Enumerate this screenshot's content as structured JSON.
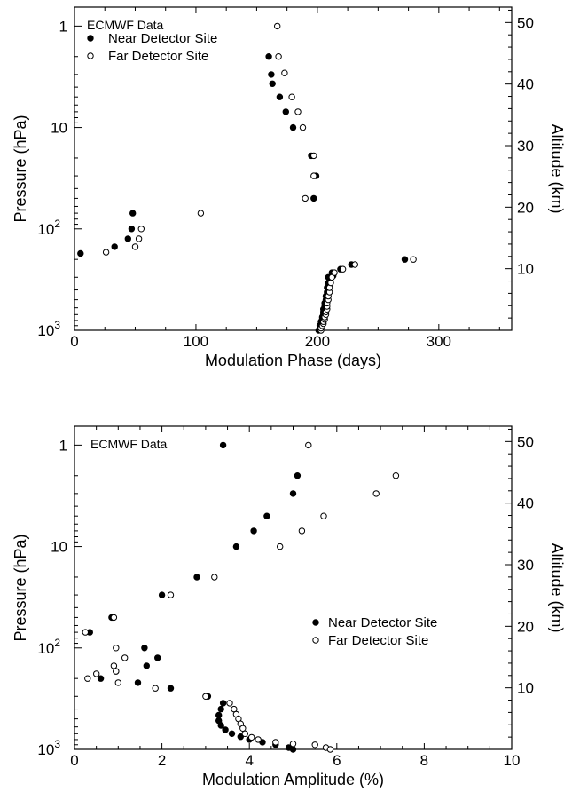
{
  "chart_data": [
    {
      "type": "scatter",
      "title": "",
      "annotation": "ECMWF Data",
      "xlabel": "Modulation Phase (days)",
      "ylabel": "Pressure (hPa)",
      "y2label": "Altitude (km)",
      "xlim": [
        0,
        360
      ],
      "ylim": [
        1000,
        0.65
      ],
      "yscale": "log",
      "x_ticks": [
        {
          "v": 0,
          "label": "0"
        },
        {
          "v": 100,
          "label": "100"
        },
        {
          "v": 200,
          "label": "200"
        },
        {
          "v": 300,
          "label": "300"
        }
      ],
      "y_ticks": [
        {
          "v": 1,
          "label": "1",
          "exp": ""
        },
        {
          "v": 10,
          "label": "10",
          "exp": ""
        },
        {
          "v": 100,
          "label": "10",
          "exp": "2"
        },
        {
          "v": 1000,
          "label": "10",
          "exp": "3"
        }
      ],
      "y2_ticks": [
        {
          "v": 10,
          "label": "10"
        },
        {
          "v": 20,
          "label": "20"
        },
        {
          "v": 30,
          "label": "30"
        },
        {
          "v": 40,
          "label": "40"
        },
        {
          "v": 50,
          "label": "50"
        }
      ],
      "y2lim": [
        0,
        52.5
      ],
      "legend_position": "top-left",
      "series": [
        {
          "name": "Near Detector Site",
          "marker": "filled-circle",
          "points": [
            [
              5,
              175
            ],
            [
              33,
              150
            ],
            [
              44,
              125
            ],
            [
              47,
              100
            ],
            [
              48,
              70
            ],
            [
              160,
              2
            ],
            [
              162,
              3
            ],
            [
              163,
              3.7
            ],
            [
              169,
              5
            ],
            [
              174,
              7
            ],
            [
              180,
              10
            ],
            [
              195,
              19
            ],
            [
              199,
              30
            ],
            [
              197,
              50
            ],
            [
              201,
              1000
            ],
            [
              202,
              950
            ],
            [
              202,
              900
            ],
            [
              203,
              860
            ],
            [
              203,
              820
            ],
            [
              204,
              780
            ],
            [
              204,
              740
            ],
            [
              205,
              700
            ],
            [
              205,
              660
            ],
            [
              205,
              620
            ],
            [
              206,
              580
            ],
            [
              206,
              540
            ],
            [
              207,
              500
            ],
            [
              207,
              460
            ],
            [
              208,
              420
            ],
            [
              208,
              380
            ],
            [
              209,
              340
            ],
            [
              209,
              300
            ],
            [
              212,
              270
            ],
            [
              213,
              290
            ],
            [
              219,
              250
            ],
            [
              228,
              225
            ],
            [
              272,
              200
            ]
          ]
        },
        {
          "name": "Far Detector Site",
          "marker": "open-circle",
          "points": [
            [
              26,
              170
            ],
            [
              50,
              150
            ],
            [
              53,
              125
            ],
            [
              55,
              100
            ],
            [
              104,
              70
            ],
            [
              167,
              1
            ],
            [
              168,
              2
            ],
            [
              173,
              2.9
            ],
            [
              179,
              5
            ],
            [
              184,
              7
            ],
            [
              188,
              10
            ],
            [
              197,
              19
            ],
            [
              197,
              30
            ],
            [
              190,
              50
            ],
            [
              203,
              1000
            ],
            [
              203,
              950
            ],
            [
              204,
              900
            ],
            [
              205,
              860
            ],
            [
              205,
              820
            ],
            [
              206,
              780
            ],
            [
              206,
              740
            ],
            [
              207,
              700
            ],
            [
              207,
              660
            ],
            [
              208,
              620
            ],
            [
              208,
              580
            ],
            [
              208,
              540
            ],
            [
              209,
              500
            ],
            [
              209,
              460
            ],
            [
              210,
              420
            ],
            [
              210,
              380
            ],
            [
              211,
              340
            ],
            [
              212,
              300
            ],
            [
              214,
              270
            ],
            [
              221,
              250
            ],
            [
              231,
              225
            ],
            [
              279,
              200
            ]
          ]
        }
      ]
    },
    {
      "type": "scatter",
      "title": "",
      "annotation": "ECMWF Data",
      "xlabel": "Modulation Amplitude (%)",
      "ylabel": "Pressure (hPa)",
      "y2label": "Altitude (km)",
      "xlim": [
        0,
        10
      ],
      "ylim": [
        1000,
        0.65
      ],
      "yscale": "log",
      "x_ticks": [
        {
          "v": 0,
          "label": "0"
        },
        {
          "v": 2,
          "label": "2"
        },
        {
          "v": 4,
          "label": "4"
        },
        {
          "v": 6,
          "label": "6"
        },
        {
          "v": 8,
          "label": "8"
        },
        {
          "v": 10,
          "label": "10"
        }
      ],
      "y_ticks": [
        {
          "v": 1,
          "label": "1",
          "exp": ""
        },
        {
          "v": 10,
          "label": "10",
          "exp": ""
        },
        {
          "v": 100,
          "label": "10",
          "exp": "2"
        },
        {
          "v": 1000,
          "label": "10",
          "exp": "3"
        }
      ],
      "y2_ticks": [
        {
          "v": 10,
          "label": "10"
        },
        {
          "v": 20,
          "label": "20"
        },
        {
          "v": 30,
          "label": "30"
        },
        {
          "v": 40,
          "label": "40"
        },
        {
          "v": 50,
          "label": "50"
        }
      ],
      "y2lim": [
        0,
        52.5
      ],
      "legend_position": "center-right",
      "series": [
        {
          "name": "Near Detector Site",
          "marker": "filled-circle",
          "points": [
            [
              3.4,
              1
            ],
            [
              5.1,
              2
            ],
            [
              5.0,
              3
            ],
            [
              4.4,
              5
            ],
            [
              4.1,
              7
            ],
            [
              3.7,
              10
            ],
            [
              2.8,
              20
            ],
            [
              2.0,
              30
            ],
            [
              0.85,
              50
            ],
            [
              0.35,
              70
            ],
            [
              1.6,
              100
            ],
            [
              1.9,
              125
            ],
            [
              0.95,
              170
            ],
            [
              0.6,
              200
            ],
            [
              1.65,
              150
            ],
            [
              1.45,
              220
            ],
            [
              2.2,
              250
            ],
            [
              3.05,
              300
            ],
            [
              3.4,
              350
            ],
            [
              3.35,
              400
            ],
            [
              3.3,
              460
            ],
            [
              3.3,
              520
            ],
            [
              3.35,
              580
            ],
            [
              3.45,
              640
            ],
            [
              3.6,
              700
            ],
            [
              3.8,
              750
            ],
            [
              4.0,
              800
            ],
            [
              4.3,
              850
            ],
            [
              4.6,
              900
            ],
            [
              4.9,
              960
            ],
            [
              5.0,
              1000
            ]
          ]
        },
        {
          "name": "Far Detector Site",
          "marker": "open-circle",
          "points": [
            [
              5.35,
              1
            ],
            [
              7.35,
              2
            ],
            [
              6.9,
              3
            ],
            [
              5.7,
              5
            ],
            [
              5.2,
              7
            ],
            [
              4.7,
              10
            ],
            [
              3.2,
              20
            ],
            [
              2.2,
              30
            ],
            [
              0.9,
              50
            ],
            [
              0.25,
              70
            ],
            [
              0.95,
              100
            ],
            [
              1.15,
              125
            ],
            [
              0.9,
              150
            ],
            [
              0.95,
              170
            ],
            [
              0.5,
              180
            ],
            [
              0.3,
              200
            ],
            [
              1.0,
              220
            ],
            [
              1.85,
              250
            ],
            [
              3.0,
              300
            ],
            [
              3.55,
              350
            ],
            [
              3.65,
              400
            ],
            [
              3.7,
              450
            ],
            [
              3.75,
              500
            ],
            [
              3.8,
              560
            ],
            [
              3.85,
              620
            ],
            [
              3.9,
              700
            ],
            [
              4.05,
              760
            ],
            [
              4.2,
              800
            ],
            [
              4.6,
              850
            ],
            [
              5.0,
              880
            ],
            [
              5.5,
              900
            ],
            [
              5.75,
              960
            ],
            [
              5.85,
              1000
            ]
          ]
        }
      ]
    }
  ]
}
